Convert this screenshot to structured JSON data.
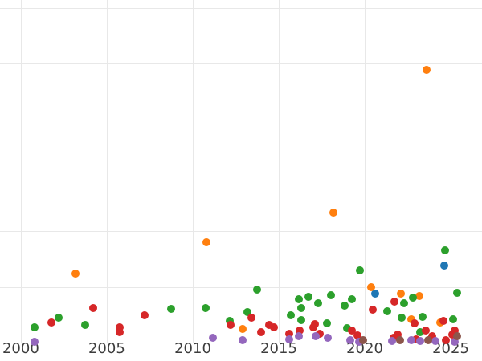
{
  "chart_data": {
    "type": "scatter",
    "title": "",
    "xlabel": "",
    "ylabel": "",
    "grid": true,
    "legend": "none",
    "y_tick_labels_visible": false,
    "axes": {
      "x": {
        "min": 1998.79,
        "max": 2026.82,
        "ticks": [
          2000,
          2005,
          2010,
          2015,
          2020,
          2025
        ]
      },
      "y": {
        "min": -0.32,
        "max": 6.14,
        "gridline_values": [
          1,
          2,
          3,
          4,
          5,
          6
        ]
      }
    },
    "series": [
      {
        "name": "blue",
        "color": "#1f77b4",
        "points": [
          [
            2020.61,
            0.88
          ],
          [
            2024.63,
            1.39
          ]
        ]
      },
      {
        "name": "orange",
        "color": "#ff7f0e",
        "points": [
          [
            2003.18,
            1.25
          ],
          [
            2010.79,
            1.81
          ],
          [
            2012.9,
            0.26
          ],
          [
            2018.18,
            2.34
          ],
          [
            2020.37,
            1.0
          ],
          [
            2022.1,
            0.88
          ],
          [
            2022.71,
            0.43
          ],
          [
            2023.18,
            0.85
          ],
          [
            2023.6,
            4.89
          ],
          [
            2024.39,
            0.37
          ]
        ]
      },
      {
        "name": "green",
        "color": "#2ca02c",
        "points": [
          [
            2000.79,
            0.29
          ],
          [
            2002.2,
            0.46
          ],
          [
            2003.74,
            0.33
          ],
          [
            2008.74,
            0.62
          ],
          [
            2010.75,
            0.63
          ],
          [
            2012.15,
            0.4
          ],
          [
            2013.18,
            0.56
          ],
          [
            2013.74,
            0.96
          ],
          [
            2015.7,
            0.5
          ],
          [
            2016.17,
            0.79
          ],
          [
            2016.31,
            0.63
          ],
          [
            2016.31,
            0.42
          ],
          [
            2016.73,
            0.83
          ],
          [
            2017.29,
            0.72
          ],
          [
            2017.8,
            0.36
          ],
          [
            2018.04,
            0.86
          ],
          [
            2018.83,
            0.67
          ],
          [
            2018.97,
            0.27
          ],
          [
            2019.25,
            0.79
          ],
          [
            2019.72,
            1.31
          ],
          [
            2021.31,
            0.57
          ],
          [
            2022.15,
            0.45
          ],
          [
            2022.29,
            0.72
          ],
          [
            2022.8,
            0.82
          ],
          [
            2023.22,
            0.2
          ],
          [
            2023.36,
            0.47
          ],
          [
            2024.67,
            1.66
          ],
          [
            2025.14,
            0.43
          ],
          [
            2025.37,
            0.9
          ]
        ]
      },
      {
        "name": "red",
        "color": "#d62728",
        "points": [
          [
            2001.78,
            0.37
          ],
          [
            2004.21,
            0.63
          ],
          [
            2005.75,
            0.29
          ],
          [
            2005.75,
            0.2
          ],
          [
            2007.2,
            0.5
          ],
          [
            2012.2,
            0.32
          ],
          [
            2013.41,
            0.46
          ],
          [
            2013.97,
            0.2
          ],
          [
            2014.44,
            0.32
          ],
          [
            2014.72,
            0.29
          ],
          [
            2015.61,
            0.17
          ],
          [
            2016.21,
            0.22
          ],
          [
            2017.01,
            0.29
          ],
          [
            2017.1,
            0.34
          ],
          [
            2017.38,
            0.17
          ],
          [
            2019.25,
            0.23
          ],
          [
            2019.58,
            0.14
          ],
          [
            2020.47,
            0.6
          ],
          [
            2021.68,
            0.1
          ],
          [
            2021.73,
            0.75
          ],
          [
            2021.92,
            0.16
          ],
          [
            2022.9,
            0.36
          ],
          [
            2022.99,
            0.07
          ],
          [
            2023.55,
            0.23
          ],
          [
            2023.93,
            0.12
          ],
          [
            2024.58,
            0.4
          ],
          [
            2024.72,
            0.06
          ],
          [
            2025.09,
            0.16
          ],
          [
            2025.23,
            0.22
          ]
        ]
      },
      {
        "name": "purple",
        "color": "#9467bd",
        "points": [
          [
            2000.79,
            0.03
          ],
          [
            2011.17,
            0.1
          ],
          [
            2012.9,
            0.06
          ],
          [
            2015.61,
            0.07
          ],
          [
            2016.17,
            0.13
          ],
          [
            2017.15,
            0.13
          ],
          [
            2017.85,
            0.09
          ],
          [
            2019.16,
            0.06
          ],
          [
            2019.67,
            0.03
          ],
          [
            2021.59,
            0.04
          ],
          [
            2022.71,
            0.06
          ],
          [
            2023.22,
            0.04
          ],
          [
            2024.11,
            0.04
          ],
          [
            2025.23,
            0.03
          ]
        ]
      },
      {
        "name": "brown",
        "color": "#8c564b",
        "points": [
          [
            2019.91,
            0.06
          ],
          [
            2022.06,
            0.06
          ],
          [
            2023.69,
            0.06
          ],
          [
            2025.37,
            0.13
          ]
        ]
      }
    ]
  },
  "style": {
    "gridline_color": "#e8e8e8",
    "tick_label_color": "#3d3d3d",
    "background_color": "#ffffff"
  }
}
